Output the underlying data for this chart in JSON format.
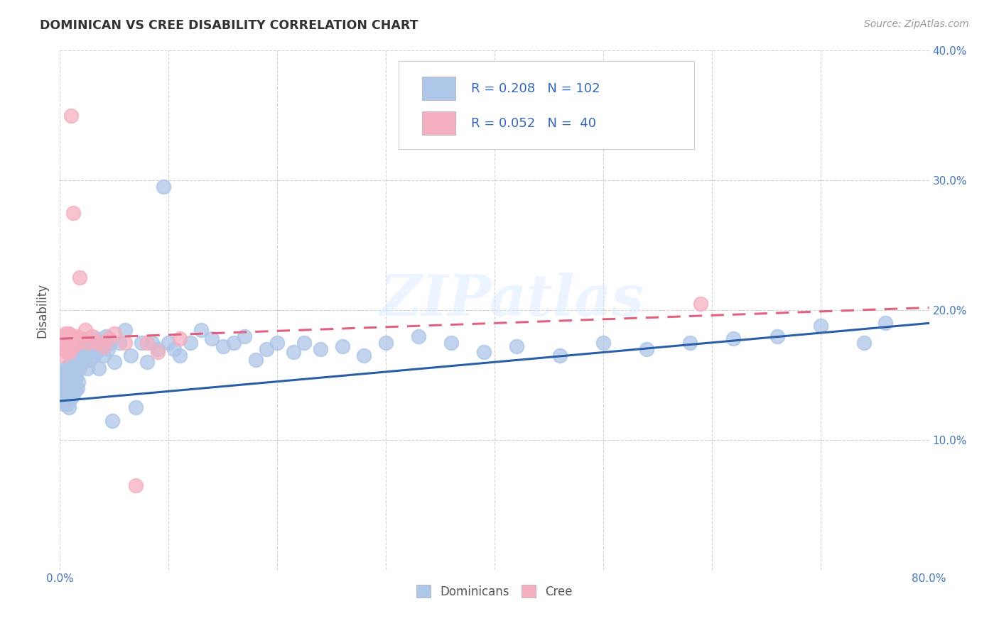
{
  "title": "DOMINICAN VS CREE DISABILITY CORRELATION CHART",
  "source": "Source: ZipAtlas.com",
  "ylabel": "Disability",
  "dominican_color": "#aec6e8",
  "cree_color": "#f4afc0",
  "dominican_line_color": "#2a5fa8",
  "cree_line_color": "#e06080",
  "r_dominican": 0.208,
  "n_dominican": 102,
  "r_cree": 0.052,
  "n_cree": 40,
  "watermark": "ZIPatlas",
  "xlim": [
    0.0,
    0.8
  ],
  "ylim": [
    0.0,
    0.4
  ],
  "dom_line_x0": 0.0,
  "dom_line_y0": 0.13,
  "dom_line_x1": 0.8,
  "dom_line_y1": 0.19,
  "cree_line_x0": 0.0,
  "cree_line_y0": 0.178,
  "cree_line_x1": 0.8,
  "cree_line_y1": 0.202,
  "dominican_x": [
    0.001,
    0.002,
    0.003,
    0.003,
    0.004,
    0.004,
    0.005,
    0.005,
    0.005,
    0.006,
    0.006,
    0.006,
    0.007,
    0.007,
    0.007,
    0.008,
    0.008,
    0.008,
    0.008,
    0.009,
    0.009,
    0.009,
    0.01,
    0.01,
    0.01,
    0.011,
    0.011,
    0.011,
    0.012,
    0.012,
    0.013,
    0.013,
    0.014,
    0.014,
    0.015,
    0.015,
    0.016,
    0.016,
    0.017,
    0.017,
    0.018,
    0.019,
    0.02,
    0.021,
    0.022,
    0.023,
    0.025,
    0.026,
    0.027,
    0.028,
    0.03,
    0.031,
    0.033,
    0.034,
    0.036,
    0.038,
    0.04,
    0.042,
    0.044,
    0.046,
    0.048,
    0.05,
    0.055,
    0.06,
    0.065,
    0.07,
    0.075,
    0.08,
    0.085,
    0.09,
    0.095,
    0.1,
    0.105,
    0.11,
    0.12,
    0.13,
    0.14,
    0.15,
    0.16,
    0.17,
    0.18,
    0.19,
    0.2,
    0.215,
    0.225,
    0.24,
    0.26,
    0.28,
    0.3,
    0.33,
    0.36,
    0.39,
    0.42,
    0.46,
    0.5,
    0.54,
    0.58,
    0.62,
    0.66,
    0.7,
    0.74,
    0.76
  ],
  "dominican_y": [
    0.13,
    0.138,
    0.145,
    0.128,
    0.152,
    0.14,
    0.135,
    0.148,
    0.155,
    0.132,
    0.142,
    0.15,
    0.128,
    0.138,
    0.155,
    0.135,
    0.148,
    0.155,
    0.125,
    0.14,
    0.15,
    0.158,
    0.132,
    0.142,
    0.155,
    0.138,
    0.148,
    0.16,
    0.135,
    0.152,
    0.142,
    0.158,
    0.138,
    0.15,
    0.148,
    0.162,
    0.14,
    0.155,
    0.145,
    0.162,
    0.155,
    0.165,
    0.17,
    0.16,
    0.175,
    0.165,
    0.155,
    0.172,
    0.162,
    0.168,
    0.175,
    0.165,
    0.178,
    0.168,
    0.155,
    0.175,
    0.165,
    0.18,
    0.17,
    0.175,
    0.115,
    0.16,
    0.175,
    0.185,
    0.165,
    0.125,
    0.175,
    0.16,
    0.175,
    0.17,
    0.295,
    0.175,
    0.17,
    0.165,
    0.175,
    0.185,
    0.178,
    0.172,
    0.175,
    0.18,
    0.162,
    0.17,
    0.175,
    0.168,
    0.175,
    0.17,
    0.172,
    0.165,
    0.175,
    0.18,
    0.175,
    0.168,
    0.172,
    0.165,
    0.175,
    0.17,
    0.175,
    0.178,
    0.18,
    0.188,
    0.175,
    0.19
  ],
  "cree_x": [
    0.001,
    0.002,
    0.003,
    0.004,
    0.004,
    0.005,
    0.005,
    0.006,
    0.006,
    0.007,
    0.007,
    0.008,
    0.008,
    0.009,
    0.009,
    0.01,
    0.01,
    0.011,
    0.011,
    0.012,
    0.012,
    0.013,
    0.014,
    0.015,
    0.016,
    0.018,
    0.02,
    0.023,
    0.026,
    0.03,
    0.035,
    0.04,
    0.045,
    0.05,
    0.06,
    0.07,
    0.08,
    0.09,
    0.11,
    0.59
  ],
  "cree_y": [
    0.175,
    0.18,
    0.165,
    0.17,
    0.178,
    0.175,
    0.182,
    0.168,
    0.175,
    0.178,
    0.172,
    0.175,
    0.182,
    0.178,
    0.168,
    0.175,
    0.35,
    0.18,
    0.175,
    0.172,
    0.275,
    0.178,
    0.175,
    0.18,
    0.175,
    0.225,
    0.178,
    0.185,
    0.175,
    0.18,
    0.175,
    0.172,
    0.178,
    0.182,
    0.175,
    0.065,
    0.175,
    0.168,
    0.178,
    0.205
  ]
}
